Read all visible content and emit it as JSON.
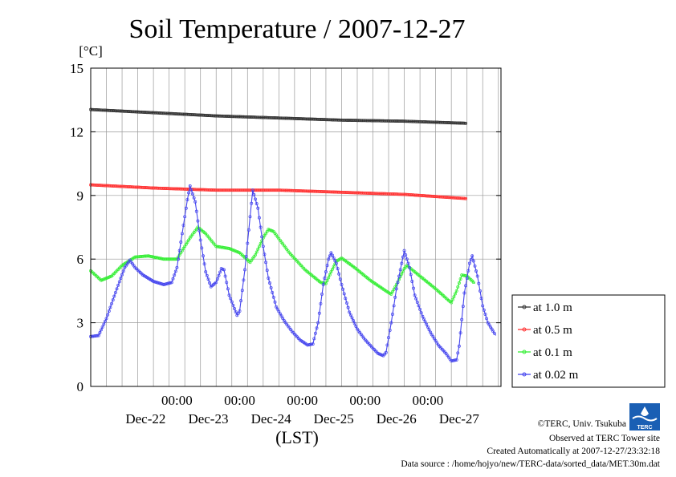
{
  "chart_data": {
    "type": "line",
    "title": "Soil Temperature / 2007-12-27",
    "ylabel": "[°C]",
    "xlabel": "(LST)",
    "ylim": [
      0,
      15
    ],
    "yticks": [
      0,
      3,
      6,
      9,
      12,
      15
    ],
    "xlim_hours": [
      0,
      144
    ],
    "time_ticks": [
      "00:00",
      "00:00",
      "00:00",
      "00:00",
      "00:00"
    ],
    "date_labels": [
      "Dec-22",
      "Dec-23",
      "Dec-24",
      "Dec-25",
      "Dec-26",
      "Dec-27"
    ],
    "grid": true,
    "legend_position": "right",
    "series": [
      {
        "name": "at 1.0 m",
        "color": "#333333",
        "points": [
          [
            0,
            13.05
          ],
          [
            24,
            12.9
          ],
          [
            48,
            12.75
          ],
          [
            72,
            12.65
          ],
          [
            96,
            12.55
          ],
          [
            120,
            12.5
          ],
          [
            144,
            12.4
          ]
        ]
      },
      {
        "name": "at 0.5 m",
        "color": "#ff3333",
        "points": [
          [
            0,
            9.5
          ],
          [
            24,
            9.35
          ],
          [
            48,
            9.25
          ],
          [
            72,
            9.25
          ],
          [
            96,
            9.15
          ],
          [
            120,
            9.05
          ],
          [
            144,
            8.85
          ]
        ]
      },
      {
        "name": "at 0.1 m",
        "color": "#33ee33",
        "points": [
          [
            0,
            5.45
          ],
          [
            4,
            5.0
          ],
          [
            8,
            5.2
          ],
          [
            12,
            5.7
          ],
          [
            17,
            6.1
          ],
          [
            22,
            6.15
          ],
          [
            28,
            6.0
          ],
          [
            33,
            6.0
          ],
          [
            38,
            7.0
          ],
          [
            41,
            7.5
          ],
          [
            44,
            7.2
          ],
          [
            48,
            6.6
          ],
          [
            53,
            6.5
          ],
          [
            57,
            6.3
          ],
          [
            61,
            5.85
          ],
          [
            63,
            6.2
          ],
          [
            66,
            7.0
          ],
          [
            68,
            7.4
          ],
          [
            70,
            7.3
          ],
          [
            76,
            6.3
          ],
          [
            82,
            5.5
          ],
          [
            88,
            4.9
          ],
          [
            90,
            4.85
          ],
          [
            92,
            5.4
          ],
          [
            94,
            5.9
          ],
          [
            96,
            6.05
          ],
          [
            101,
            5.6
          ],
          [
            107,
            5.0
          ],
          [
            113,
            4.5
          ],
          [
            115,
            4.35
          ],
          [
            117,
            4.8
          ],
          [
            120,
            5.55
          ],
          [
            121,
            5.7
          ],
          [
            126,
            5.2
          ],
          [
            132,
            4.6
          ],
          [
            137,
            4.05
          ],
          [
            138,
            3.95
          ],
          [
            140,
            4.5
          ],
          [
            142,
            5.25
          ],
          [
            144,
            5.2
          ],
          [
            147,
            4.85
          ]
        ]
      },
      {
        "name": "at 0.02 m",
        "color": "#4444ee",
        "points": [
          [
            0,
            2.35
          ],
          [
            3,
            2.4
          ],
          [
            6,
            3.2
          ],
          [
            10,
            4.6
          ],
          [
            13,
            5.6
          ],
          [
            15,
            5.95
          ],
          [
            17,
            5.6
          ],
          [
            20,
            5.25
          ],
          [
            24,
            4.95
          ],
          [
            28,
            4.8
          ],
          [
            31,
            4.9
          ],
          [
            33,
            5.6
          ],
          [
            35,
            7.2
          ],
          [
            37,
            8.8
          ],
          [
            38,
            9.45
          ],
          [
            40,
            8.7
          ],
          [
            42,
            6.9
          ],
          [
            44,
            5.4
          ],
          [
            46,
            4.7
          ],
          [
            48,
            4.9
          ],
          [
            50,
            5.55
          ],
          [
            51,
            5.5
          ],
          [
            53,
            4.3
          ],
          [
            56,
            3.35
          ],
          [
            57,
            3.55
          ],
          [
            59,
            5.5
          ],
          [
            61,
            8.0
          ],
          [
            62,
            9.25
          ],
          [
            64,
            8.4
          ],
          [
            66,
            6.6
          ],
          [
            68,
            5.1
          ],
          [
            71,
            3.75
          ],
          [
            74,
            3.1
          ],
          [
            77,
            2.6
          ],
          [
            80,
            2.2
          ],
          [
            83,
            1.95
          ],
          [
            85,
            2.0
          ],
          [
            87,
            3.0
          ],
          [
            89,
            4.8
          ],
          [
            91,
            6.0
          ],
          [
            92,
            6.3
          ],
          [
            94,
            5.8
          ],
          [
            96,
            4.8
          ],
          [
            99,
            3.5
          ],
          [
            102,
            2.7
          ],
          [
            105,
            2.2
          ],
          [
            108,
            1.8
          ],
          [
            110,
            1.55
          ],
          [
            112,
            1.45
          ],
          [
            113,
            1.6
          ],
          [
            115,
            3.0
          ],
          [
            117,
            4.6
          ],
          [
            119,
            5.8
          ],
          [
            120,
            6.4
          ],
          [
            122,
            5.6
          ],
          [
            124,
            4.3
          ],
          [
            127,
            3.3
          ],
          [
            130,
            2.55
          ],
          [
            133,
            1.95
          ],
          [
            136,
            1.55
          ],
          [
            138,
            1.2
          ],
          [
            140,
            1.25
          ],
          [
            141,
            1.9
          ],
          [
            143,
            4.4
          ],
          [
            145,
            5.8
          ],
          [
            146,
            6.15
          ],
          [
            148,
            5.2
          ],
          [
            150,
            3.8
          ],
          [
            152,
            3.0
          ],
          [
            155,
            2.4
          ]
        ]
      }
    ]
  },
  "credits": {
    "copyright": "©TERC, Univ. Tsukuba",
    "observed": "Observed at TERC Tower site",
    "created": "Created Automatically at 2007-12-27/23:32:18",
    "source": "Data source : /home/hojyo/new/TERC-data/sorted_data/MET.30m.dat",
    "logo_text": "TERC"
  }
}
